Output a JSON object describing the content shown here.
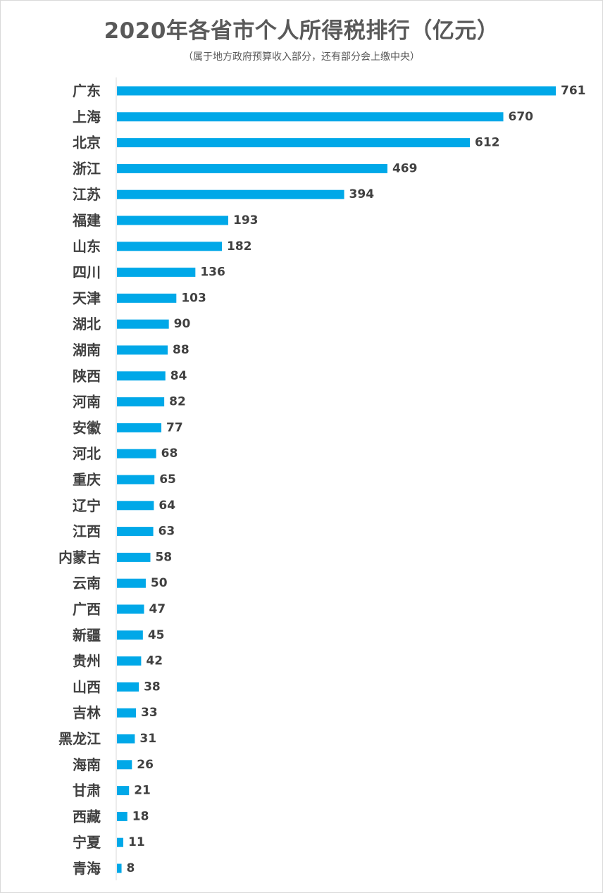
{
  "chart_data": {
    "type": "bar",
    "orientation": "horizontal",
    "title": "2020年各省市个人所得税排行（亿元）",
    "subtitle": "（属于地方政府预算收入部分，还有部分会上缴中央）",
    "categories": [
      "广东",
      "上海",
      "北京",
      "浙江",
      "江苏",
      "福建",
      "山东",
      "四川",
      "天津",
      "湖北",
      "湖南",
      "陕西",
      "河南",
      "安徽",
      "河北",
      "重庆",
      "辽宁",
      "江西",
      "内蒙古",
      "云南",
      "广西",
      "新疆",
      "贵州",
      "山西",
      "吉林",
      "黑龙江",
      "海南",
      "甘肃",
      "西藏",
      "宁夏",
      "青海"
    ],
    "values": [
      761,
      670,
      612,
      469,
      394,
      193,
      182,
      136,
      103,
      90,
      88,
      84,
      82,
      77,
      68,
      65,
      64,
      63,
      58,
      50,
      47,
      45,
      42,
      38,
      33,
      31,
      26,
      21,
      18,
      11,
      8
    ],
    "xlabel": "",
    "ylabel": "",
    "xlim": [
      0,
      761
    ],
    "grid": false,
    "legend": "none",
    "data_labels": true,
    "colors": {
      "bar": "#00a8e8",
      "label_text": "#404040",
      "category_text": "#404040",
      "axis": "#d9d9d9"
    }
  }
}
